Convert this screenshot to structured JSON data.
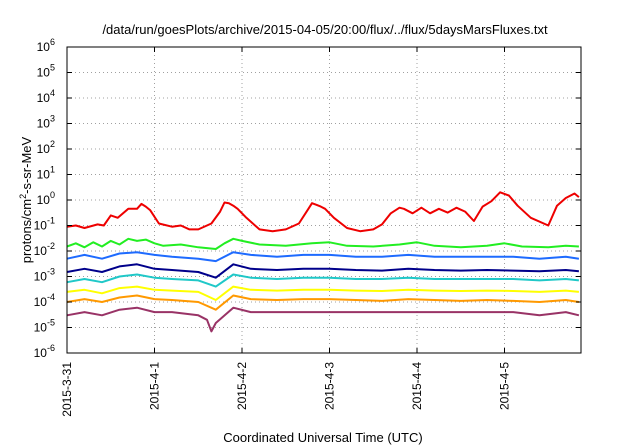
{
  "chart_data": {
    "type": "line",
    "title": "/data/run/goesPlots/archive/2015-04-05/20:00/flux/../flux/5daysMarsFluxes.txt",
    "xlabel": "Coordinated Universal Time (UTC)",
    "ylabel": "protons/cm²-s-sr-MeV",
    "ylabel_parts": {
      "pre": "protons/cm",
      "sup": "2",
      "post": "-s-sr-MeV"
    },
    "yscale": "log",
    "ylim": [
      1e-06,
      1000000.0
    ],
    "xlim_days": [
      0,
      5.85
    ],
    "grid": true,
    "legend": "none",
    "y_ticks": [
      {
        "base": "10",
        "exp": "-6",
        "value": 1e-06
      },
      {
        "base": "10",
        "exp": "-5",
        "value": 1e-05
      },
      {
        "base": "10",
        "exp": "-4",
        "value": 0.0001
      },
      {
        "base": "10",
        "exp": "-3",
        "value": 0.001
      },
      {
        "base": "10",
        "exp": "-2",
        "value": 0.01
      },
      {
        "base": "10",
        "exp": "-1",
        "value": 0.1
      },
      {
        "base": "10",
        "exp": "0",
        "value": 1
      },
      {
        "base": "10",
        "exp": "1",
        "value": 10
      },
      {
        "base": "10",
        "exp": "2",
        "value": 100
      },
      {
        "base": "10",
        "exp": "3",
        "value": 1000
      },
      {
        "base": "10",
        "exp": "4",
        "value": 10000
      },
      {
        "base": "10",
        "exp": "5",
        "value": 100000
      },
      {
        "base": "10",
        "exp": "6",
        "value": 1000000
      }
    ],
    "x_ticks": [
      {
        "label": "2015-3-31",
        "day": 0
      },
      {
        "label": "2015-4-1",
        "day": 1
      },
      {
        "label": "2015-4-2",
        "day": 2
      },
      {
        "label": "2015-4-3",
        "day": 3
      },
      {
        "label": "2015-4-4",
        "day": 4
      },
      {
        "label": "2015-4-5",
        "day": 5
      }
    ],
    "series": [
      {
        "color": "#ee0000",
        "x": [
          0,
          0.1,
          0.2,
          0.35,
          0.42,
          0.5,
          0.58,
          0.7,
          0.8,
          0.85,
          0.9,
          0.95,
          1.05,
          1.2,
          1.3,
          1.4,
          1.5,
          1.65,
          1.75,
          1.8,
          1.85,
          1.9,
          1.95,
          2.05,
          2.2,
          2.35,
          2.5,
          2.65,
          2.75,
          2.8,
          2.85,
          2.9,
          2.95,
          3.05,
          3.2,
          3.35,
          3.5,
          3.6,
          3.7,
          3.8,
          3.85,
          3.95,
          4.05,
          4.15,
          4.25,
          4.35,
          4.45,
          4.55,
          4.65,
          4.75,
          4.85,
          4.95,
          5.05,
          5.15,
          5.3,
          5.5,
          5.6,
          5.7,
          5.8,
          5.85
        ],
        "values": [
          0.09,
          0.1,
          0.08,
          0.11,
          0.1,
          0.25,
          0.2,
          0.45,
          0.45,
          0.7,
          0.55,
          0.4,
          0.12,
          0.09,
          0.1,
          0.07,
          0.07,
          0.12,
          0.35,
          0.8,
          0.75,
          0.6,
          0.45,
          0.2,
          0.07,
          0.06,
          0.07,
          0.12,
          0.4,
          0.75,
          0.65,
          0.55,
          0.45,
          0.2,
          0.08,
          0.06,
          0.07,
          0.11,
          0.3,
          0.5,
          0.45,
          0.3,
          0.5,
          0.3,
          0.45,
          0.32,
          0.5,
          0.35,
          0.15,
          0.55,
          0.9,
          2.0,
          1.5,
          0.6,
          0.2,
          0.1,
          0.6,
          1.2,
          1.8,
          1.3
        ]
      },
      {
        "color": "#22ee22",
        "x": [
          0,
          0.1,
          0.2,
          0.3,
          0.4,
          0.5,
          0.6,
          0.7,
          0.8,
          0.9,
          1.0,
          1.1,
          1.3,
          1.5,
          1.7,
          1.8,
          1.9,
          2.0,
          2.2,
          2.5,
          2.8,
          3.0,
          3.2,
          3.5,
          3.8,
          4.0,
          4.2,
          4.5,
          4.8,
          5.0,
          5.2,
          5.5,
          5.7,
          5.85
        ],
        "values": [
          0.015,
          0.02,
          0.014,
          0.022,
          0.015,
          0.025,
          0.018,
          0.03,
          0.025,
          0.028,
          0.02,
          0.016,
          0.018,
          0.014,
          0.012,
          0.02,
          0.03,
          0.025,
          0.018,
          0.016,
          0.02,
          0.022,
          0.016,
          0.015,
          0.018,
          0.022,
          0.016,
          0.014,
          0.016,
          0.02,
          0.015,
          0.014,
          0.016,
          0.015
        ]
      },
      {
        "color": "#1e6bff",
        "x": [
          0,
          0.2,
          0.4,
          0.6,
          0.8,
          1.0,
          1.2,
          1.5,
          1.7,
          1.9,
          2.1,
          2.4,
          2.7,
          3.0,
          3.3,
          3.6,
          3.9,
          4.2,
          4.5,
          4.8,
          5.1,
          5.4,
          5.7,
          5.85
        ],
        "values": [
          0.005,
          0.007,
          0.005,
          0.008,
          0.009,
          0.007,
          0.006,
          0.005,
          0.004,
          0.009,
          0.007,
          0.006,
          0.007,
          0.007,
          0.006,
          0.006,
          0.007,
          0.006,
          0.006,
          0.006,
          0.006,
          0.005,
          0.006,
          0.005
        ]
      },
      {
        "color": "#00008b",
        "x": [
          0,
          0.2,
          0.4,
          0.6,
          0.8,
          1.0,
          1.2,
          1.5,
          1.7,
          1.9,
          2.1,
          2.4,
          2.7,
          3.0,
          3.3,
          3.6,
          3.9,
          4.2,
          4.5,
          4.8,
          5.1,
          5.4,
          5.7,
          5.85
        ],
        "values": [
          0.0015,
          0.002,
          0.0015,
          0.0025,
          0.003,
          0.002,
          0.0018,
          0.0015,
          0.0009,
          0.003,
          0.002,
          0.0018,
          0.002,
          0.002,
          0.0018,
          0.0017,
          0.002,
          0.0018,
          0.0017,
          0.0018,
          0.0017,
          0.0016,
          0.0018,
          0.0016
        ]
      },
      {
        "color": "#20c8c8",
        "x": [
          0,
          0.2,
          0.4,
          0.6,
          0.8,
          1.0,
          1.2,
          1.5,
          1.7,
          1.9,
          2.1,
          2.4,
          2.7,
          3.0,
          3.3,
          3.6,
          3.9,
          4.2,
          4.5,
          4.8,
          5.1,
          5.4,
          5.7,
          5.85
        ],
        "values": [
          0.0006,
          0.0008,
          0.0006,
          0.001,
          0.0012,
          0.0009,
          0.0008,
          0.0007,
          0.0004,
          0.0012,
          0.0009,
          0.0008,
          0.0009,
          0.0009,
          0.0008,
          0.0008,
          0.0009,
          0.0008,
          0.0008,
          0.0008,
          0.0008,
          0.0007,
          0.0008,
          0.0007
        ]
      },
      {
        "color": "#ffff00",
        "x": [
          0,
          0.2,
          0.4,
          0.6,
          0.8,
          1.0,
          1.2,
          1.5,
          1.7,
          1.9,
          2.1,
          2.4,
          2.7,
          3.0,
          3.3,
          3.6,
          3.9,
          4.2,
          4.5,
          4.8,
          5.1,
          5.4,
          5.7,
          5.85
        ],
        "values": [
          0.00025,
          0.0003,
          0.00022,
          0.00035,
          0.0004,
          0.0003,
          0.00028,
          0.00025,
          0.00012,
          0.0004,
          0.0003,
          0.00028,
          0.0003,
          0.0003,
          0.00028,
          0.00027,
          0.0003,
          0.00028,
          0.00027,
          0.00028,
          0.00027,
          0.00025,
          0.00028,
          0.00025
        ]
      },
      {
        "color": "#ff9900",
        "x": [
          0,
          0.2,
          0.4,
          0.6,
          0.8,
          1.0,
          1.2,
          1.5,
          1.7,
          1.9,
          2.1,
          2.4,
          2.7,
          3.0,
          3.3,
          3.6,
          3.9,
          4.2,
          4.5,
          4.8,
          5.1,
          5.4,
          5.7,
          5.85
        ],
        "values": [
          0.0001,
          0.00013,
          0.0001,
          0.00015,
          0.00018,
          0.00013,
          0.00012,
          0.0001,
          5e-05,
          0.00018,
          0.00013,
          0.00012,
          0.00013,
          0.00013,
          0.00012,
          0.00011,
          0.00013,
          0.00012,
          0.00011,
          0.00012,
          0.00011,
          0.0001,
          0.00012,
          0.0001
        ]
      },
      {
        "color": "#993366",
        "x": [
          0,
          0.2,
          0.4,
          0.6,
          0.8,
          1.0,
          1.2,
          1.5,
          1.6,
          1.65,
          1.7,
          1.9,
          2.1,
          2.4,
          2.7,
          3.0,
          3.3,
          3.6,
          3.9,
          4.2,
          4.5,
          4.8,
          5.1,
          5.4,
          5.7,
          5.85
        ],
        "values": [
          3e-05,
          4e-05,
          3e-05,
          5e-05,
          6e-05,
          4e-05,
          4e-05,
          3e-05,
          2e-05,
          7e-06,
          1.5e-05,
          6e-05,
          4e-05,
          4e-05,
          4e-05,
          4e-05,
          4e-05,
          4e-05,
          4e-05,
          4e-05,
          4e-05,
          4e-05,
          4e-05,
          3e-05,
          4e-05,
          3e-05
        ]
      }
    ]
  }
}
